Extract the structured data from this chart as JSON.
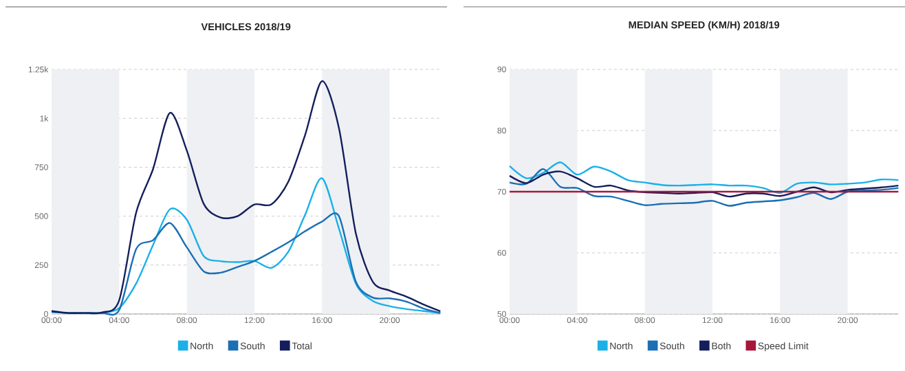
{
  "chart_data": [
    {
      "type": "line",
      "title": "VEHICLES 2018/19",
      "x": [
        0,
        1,
        2,
        3,
        4,
        5,
        6,
        7,
        8,
        9,
        10,
        11,
        12,
        13,
        14,
        15,
        16,
        17,
        18,
        19,
        20,
        21,
        22,
        23
      ],
      "series": [
        {
          "name": "North",
          "color": "#1ab0e8",
          "values": [
            10,
            5,
            5,
            5,
            30,
            155,
            352,
            535,
            482,
            296,
            270,
            265,
            271,
            236,
            317,
            507,
            694,
            437,
            155,
            67,
            40,
            25,
            15,
            5
          ]
        },
        {
          "name": "South",
          "color": "#1a6fb5",
          "values": [
            10,
            5,
            5,
            5,
            20,
            331,
            377,
            465,
            341,
            218,
            211,
            240,
            271,
            317,
            366,
            423,
            472,
            500,
            165,
            84,
            80,
            63,
            28,
            5
          ]
        },
        {
          "name": "Total",
          "color": "#141e5c",
          "values": [
            15,
            5,
            5,
            8,
            70,
            517,
            740,
            1028,
            835,
            563,
            493,
            500,
            560,
            560,
            675,
            915,
            1190,
            950,
            412,
            165,
            120,
            88,
            49,
            14
          ]
        }
      ],
      "xlim": [
        0,
        23
      ],
      "xticks": [
        {
          "value": 0,
          "label": "00:00"
        },
        {
          "value": 4,
          "label": "04:00"
        },
        {
          "value": 8,
          "label": "08:00"
        },
        {
          "value": 12,
          "label": "12:00"
        },
        {
          "value": 16,
          "label": "16:00"
        },
        {
          "value": 20,
          "label": "20:00"
        }
      ],
      "ylim": [
        0,
        1250
      ],
      "yticks": [
        0,
        250,
        500,
        750,
        {
          "value": 1000,
          "label": "1k"
        },
        {
          "value": 1250,
          "label": "1.25k"
        }
      ],
      "bands": [
        {
          "axis": "x",
          "from": 0,
          "to": 4,
          "color": "#eef0f3"
        },
        {
          "axis": "x",
          "from": 8,
          "to": 12,
          "color": "#eef0f3"
        },
        {
          "axis": "x",
          "from": 16,
          "to": 20,
          "color": "#eef0f3"
        }
      ],
      "grid": "y",
      "legend": "bottom"
    },
    {
      "type": "line",
      "title": "MEDIAN SPEED (KM/H) 2018/19",
      "x": [
        0,
        1,
        2,
        3,
        4,
        5,
        6,
        7,
        8,
        9,
        10,
        11,
        12,
        13,
        14,
        15,
        16,
        17,
        18,
        19,
        20,
        21,
        22,
        23
      ],
      "series": [
        {
          "name": "North",
          "color": "#1ab0e8",
          "values": [
            74.2,
            72.2,
            73.1,
            74.8,
            72.8,
            74.1,
            73.3,
            71.9,
            71.5,
            71.1,
            71.0,
            71.1,
            71.2,
            71.0,
            71.0,
            70.6,
            69.8,
            71.3,
            71.5,
            71.2,
            71.3,
            71.5,
            72.0,
            71.9
          ]
        },
        {
          "name": "South",
          "color": "#1a6fb5",
          "values": [
            71.5,
            71.3,
            73.7,
            70.8,
            70.6,
            69.3,
            69.2,
            68.5,
            67.8,
            68.0,
            68.1,
            68.2,
            68.5,
            67.7,
            68.2,
            68.4,
            68.6,
            69.1,
            69.8,
            68.8,
            70.0,
            70.2,
            70.3,
            70.6
          ]
        },
        {
          "name": "Both",
          "color": "#141e5c",
          "values": [
            72.6,
            71.4,
            72.8,
            73.3,
            72.2,
            70.8,
            71.0,
            70.2,
            69.9,
            69.8,
            69.7,
            69.8,
            69.9,
            69.2,
            69.7,
            69.7,
            69.3,
            70.0,
            70.7,
            69.9,
            70.3,
            70.5,
            70.7,
            71.0
          ]
        },
        {
          "name": "Speed Limit",
          "color": "#a8163a",
          "values": [
            70,
            70,
            70,
            70,
            70,
            70,
            70,
            70,
            70,
            70,
            70,
            70,
            70,
            70,
            70,
            70,
            70,
            70,
            70,
            70,
            70,
            70,
            70,
            70
          ]
        }
      ],
      "xlim": [
        0,
        23
      ],
      "xticks": [
        {
          "value": 0,
          "label": "00:00"
        },
        {
          "value": 4,
          "label": "04:00"
        },
        {
          "value": 8,
          "label": "08:00"
        },
        {
          "value": 12,
          "label": "12:00"
        },
        {
          "value": 16,
          "label": "16:00"
        },
        {
          "value": 20,
          "label": "20:00"
        }
      ],
      "ylim": [
        50,
        90
      ],
      "yticks": [
        50,
        60,
        70,
        80,
        90
      ],
      "bands": [
        {
          "axis": "x",
          "from": 0,
          "to": 4,
          "color": "#eef0f3"
        },
        {
          "axis": "x",
          "from": 8,
          "to": 12,
          "color": "#eef0f3"
        },
        {
          "axis": "x",
          "from": 16,
          "to": 20,
          "color": "#eef0f3"
        }
      ],
      "grid": "y",
      "legend": "bottom"
    }
  ]
}
